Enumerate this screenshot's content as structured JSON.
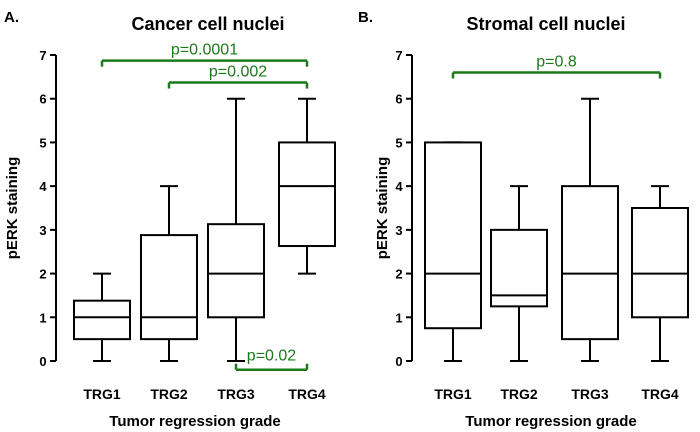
{
  "chart_data": [
    {
      "type": "box",
      "panel_label": "A.",
      "title": "Cancer cell nuclei",
      "xlabel": "Tumor regression grade",
      "ylabel": "pERK staining",
      "ylim": [
        0,
        7
      ],
      "yticks": [
        "0",
        "1",
        "2",
        "3",
        "4",
        "5",
        "6",
        "7"
      ],
      "categories": [
        "TRG1",
        "TRG2",
        "TRG3",
        "TRG4"
      ],
      "boxes": [
        {
          "min": 0,
          "q1": 0.5,
          "median": 1,
          "q3": 1.38,
          "max": 2
        },
        {
          "min": 0,
          "q1": 0.5,
          "median": 1,
          "q3": 2.88,
          "max": 4
        },
        {
          "min": 0,
          "q1": 1,
          "median": 2,
          "q3": 3.13,
          "max": 6
        },
        {
          "min": 2,
          "q1": 2.63,
          "median": 4,
          "q3": 5,
          "max": 6
        }
      ],
      "annotations": [
        {
          "text": "p=0.0001",
          "from": 0,
          "to": 3,
          "level": 6.87,
          "direction": "down"
        },
        {
          "text": "p=0.002",
          "from": 1,
          "to": 3,
          "level": 6.37,
          "direction": "down"
        },
        {
          "text": "p=0.02",
          "from": 2,
          "to": 3,
          "level": -0.2,
          "direction": "up"
        }
      ],
      "annotation_color": "#1a7a1a"
    },
    {
      "type": "box",
      "panel_label": "B.",
      "title": "Stromal cell nuclei",
      "xlabel": "Tumor regression grade",
      "ylabel": "pERK staining",
      "ylim": [
        0,
        7
      ],
      "yticks": [
        "0",
        "1",
        "2",
        "3",
        "4",
        "5",
        "6",
        "7"
      ],
      "categories": [
        "TRG1",
        "TRG2",
        "TRG3",
        "TRG4"
      ],
      "boxes": [
        {
          "min": 0,
          "q1": 0.75,
          "median": 2,
          "q3": 5,
          "max": 5
        },
        {
          "min": 0,
          "q1": 1.25,
          "median": 1.5,
          "q3": 3,
          "max": 4
        },
        {
          "min": 0,
          "q1": 0.5,
          "median": 2,
          "q3": 4,
          "max": 6
        },
        {
          "min": 0,
          "q1": 1,
          "median": 2,
          "q3": 3.5,
          "max": 4
        }
      ],
      "annotations": [
        {
          "text": "p=0.8",
          "from": 0,
          "to": 3,
          "level": 6.6,
          "direction": "down"
        }
      ],
      "annotation_color": "#1a7a1a"
    }
  ]
}
